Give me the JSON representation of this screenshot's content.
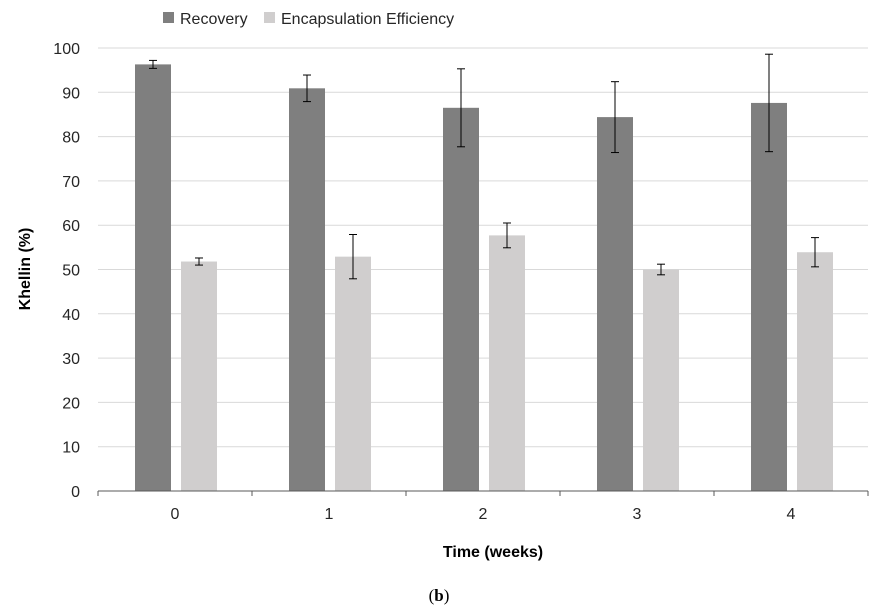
{
  "chart_data": {
    "type": "bar",
    "categories": [
      "0",
      "1",
      "2",
      "3",
      "4"
    ],
    "series": [
      {
        "name": "Recovery",
        "values": [
          96.3,
          90.9,
          86.5,
          84.4,
          87.6
        ],
        "errors": [
          0.9,
          3.0,
          8.8,
          8.0,
          11.0
        ],
        "color": "#7f7f7f"
      },
      {
        "name": "Encapsulation Efficiency",
        "values": [
          51.8,
          52.9,
          57.7,
          50.0,
          53.9
        ],
        "errors": [
          0.8,
          5.0,
          2.8,
          1.2,
          3.3
        ],
        "color": "#d0cece"
      }
    ],
    "xlabel": "Time (weeks)",
    "ylabel": "Khellin (%)",
    "ylim": [
      0,
      100
    ],
    "yticks": [
      0,
      10,
      20,
      30,
      40,
      50,
      60,
      70,
      80,
      90,
      100
    ],
    "grid": true,
    "legend": "top-left",
    "caption_prefix": "(",
    "caption_letter": "b",
    "caption_suffix": ")"
  }
}
